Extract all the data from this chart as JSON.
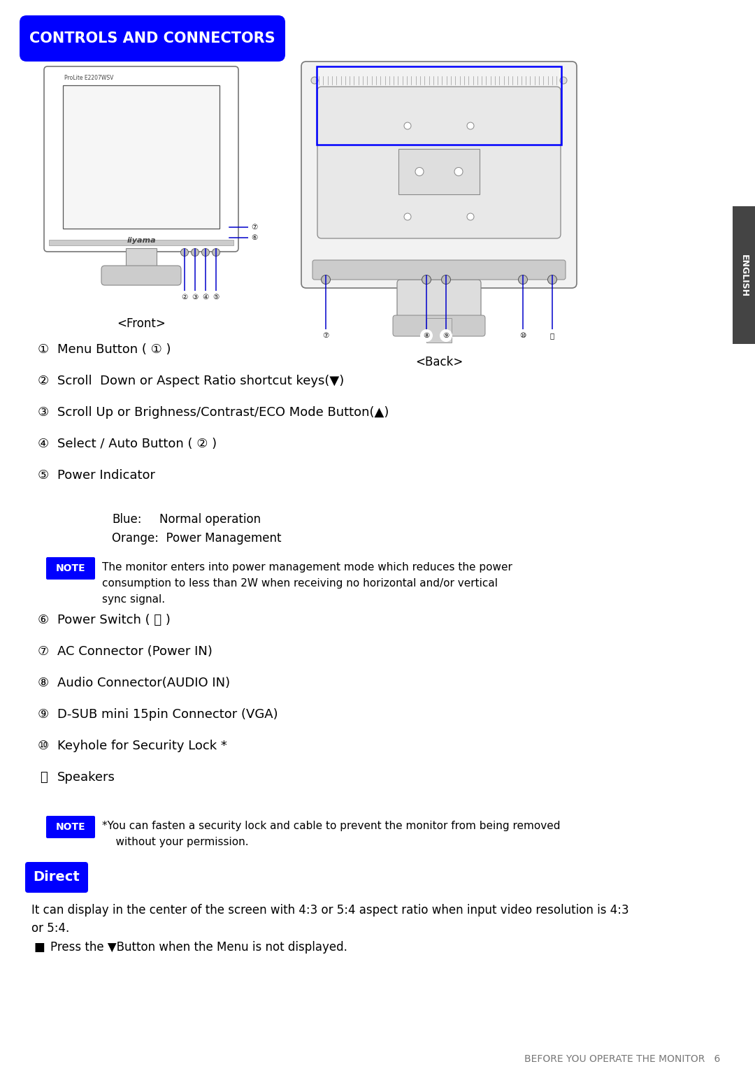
{
  "title": "CONTROLS AND CONNECTORS",
  "title_bg": "#0000FF",
  "title_fg": "#FFFFFF",
  "front_label": "<Front>",
  "back_label": "<Back>",
  "english_text": "ENGLISH",
  "items": [
    {
      "num": "①",
      "text": "Menu Button ( ① )"
    },
    {
      "num": "②",
      "text": "Scroll  Down or Aspect Ratio shortcut keys(▼)"
    },
    {
      "num": "③",
      "text": "Scroll Up or Brighness/Contrast/ECO Mode Button(▲)"
    },
    {
      "num": "④",
      "text": "Select / Auto Button ( ② )"
    },
    {
      "num": "⑤",
      "text": "Power Indicator"
    },
    {
      "num": "⑥",
      "text": "Power Switch ( ⏻ )"
    },
    {
      "num": "⑦",
      "text": "AC Connector (Power IN)"
    },
    {
      "num": "⑧",
      "text": "Audio Connector(AUDIO IN)"
    },
    {
      "num": "⑨",
      "text": "D-SUB mini 15pin Connector (VGA)"
    },
    {
      "num": "⑩",
      "text": "Keyhole for Security Lock *"
    },
    {
      "num": "⑪",
      "text": "Speakers"
    }
  ],
  "blue_label": "Blue:",
  "blue_val": "Normal operation",
  "orange_label": "Orange:  Power Management",
  "note_text": "The monitor enters into power management mode which reduces the power\nconsumption to less than 2W when receiving no horizontal and/or vertical\nsync signal.",
  "note2_text": "*You can fasten a security lock and cable to prevent the monitor from being removed\n    without your permission.",
  "direct_text": "Direct",
  "direct_body": "It can display in the center of the screen with 4:3 or 5:4 aspect ratio when input video resolution is 4:3\nor 5:4.",
  "direct_bullet": "Press the ▼Button when the Menu is not displayed.",
  "footer": "BEFORE YOU OPERATE THE MONITOR   6",
  "bg_color": "#FFFFFF",
  "line_color": "#0000CC",
  "diagram_stroke": "#888888"
}
